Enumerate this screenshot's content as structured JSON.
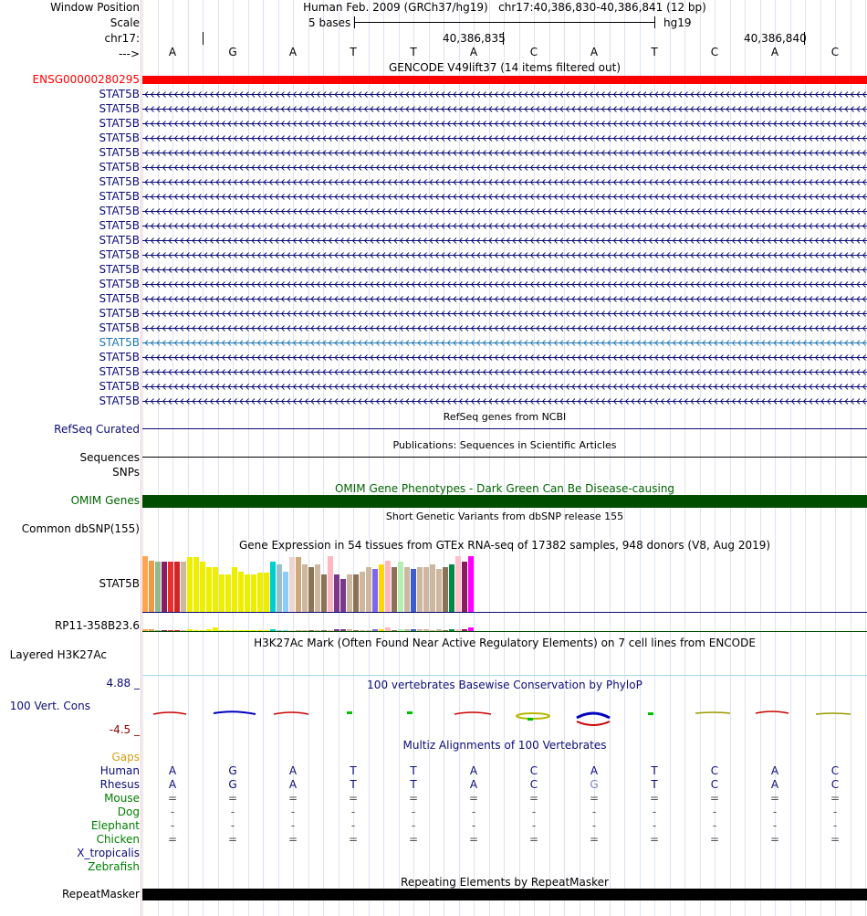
{
  "header": {
    "window_position_label": "Window Position",
    "scale_label": "Scale",
    "chrom_label": "chr17:",
    "arrow_label": "--->",
    "assembly": "Human Feb. 2009 (GRCh37/hg19)",
    "position": "chr17:40,386,830-40,386,841 (12 bp)",
    "scale_text": "5 bases",
    "db": "hg19",
    "coord1": "40,386,835",
    "coord2": "40,386,840"
  },
  "bases": [
    "A",
    "G",
    "A",
    "T",
    "T",
    "A",
    "C",
    "A",
    "T",
    "C",
    "A",
    "C"
  ],
  "gencode": {
    "title": "GENCODE V49lift37 (14 items filtered out)",
    "top_item": "ENSG00000280295",
    "top_color": "#ff0000",
    "items": [
      "STAT5B",
      "STAT5B",
      "STAT5B",
      "STAT5B",
      "STAT5B",
      "STAT5B",
      "STAT5B",
      "STAT5B",
      "STAT5B",
      "STAT5B",
      "STAT5B",
      "STAT5B",
      "STAT5B",
      "STAT5B",
      "STAT5B",
      "STAT5B",
      "STAT5B",
      "STAT5B",
      "STAT5B",
      "STAT5B",
      "STAT5B",
      "STAT5B"
    ],
    "item_color": "#0c0c78",
    "highlight_color": "#1f77b4",
    "highlight_index": 17
  },
  "refseq": {
    "title": "RefSeq genes from NCBI",
    "label": "RefSeq Curated"
  },
  "publications": {
    "title": "Publications: Sequences in Scientific Articles",
    "label": "Sequences"
  },
  "snps": {
    "label": "SNPs"
  },
  "omim": {
    "title": "OMIM Gene Phenotypes - Dark Green Can Be Disease-causing",
    "label": "OMIM Genes",
    "color": "#004d00"
  },
  "dbsnp": {
    "title": "Short Genetic Variants from dbSNP release 155",
    "label": "Common dbSNP(155)"
  },
  "gtex": {
    "title": "Gene Expression in 54 tissues from GTEx RNA-seq of 17382 samples, 948 donors (V8, Aug 2019)",
    "gene1": "STAT5B",
    "gene2": "RP11-358B23.6",
    "bars": [
      {
        "v": 0.95,
        "c": "#ffa54f"
      },
      {
        "v": 0.88,
        "c": "#ee9a49"
      },
      {
        "v": 0.86,
        "c": "#8fbc8f"
      },
      {
        "v": 0.86,
        "c": "#8b1c62"
      },
      {
        "v": 0.86,
        "c": "#ee2c2c"
      },
      {
        "v": 0.86,
        "c": "#cd2626"
      },
      {
        "v": 0.86,
        "c": "#cdb79e"
      },
      {
        "v": 0.93,
        "c": "#eeee00"
      },
      {
        "v": 0.93,
        "c": "#eeee00"
      },
      {
        "v": 0.86,
        "c": "#eeee00"
      },
      {
        "v": 0.77,
        "c": "#eeee00"
      },
      {
        "v": 0.77,
        "c": "#eeee00"
      },
      {
        "v": 0.64,
        "c": "#eeee00"
      },
      {
        "v": 0.64,
        "c": "#eeee00"
      },
      {
        "v": 0.77,
        "c": "#eeee00"
      },
      {
        "v": 0.69,
        "c": "#eeee00"
      },
      {
        "v": 0.64,
        "c": "#eeee00"
      },
      {
        "v": 0.64,
        "c": "#eeee00"
      },
      {
        "v": 0.67,
        "c": "#eeee00"
      },
      {
        "v": 0.67,
        "c": "#eeee00"
      },
      {
        "v": 0.86,
        "c": "#00cdcd"
      },
      {
        "v": 0.82,
        "c": "#9ac0cd"
      },
      {
        "v": 0.68,
        "c": "#87cefa"
      },
      {
        "v": 0.93,
        "c": "#eed5d2"
      },
      {
        "v": 0.93,
        "c": "#cdaa7d"
      },
      {
        "v": 0.82,
        "c": "#cdb79e"
      },
      {
        "v": 0.77,
        "c": "#8b7355"
      },
      {
        "v": 0.82,
        "c": "#cdb79e"
      },
      {
        "v": 0.64,
        "c": "#8b7355"
      },
      {
        "v": 0.95,
        "c": "#ffb6c1"
      },
      {
        "v": 0.64,
        "c": "#7a378b"
      },
      {
        "v": 0.56,
        "c": "#7a378b"
      },
      {
        "v": 0.64,
        "c": "#cdb79e"
      },
      {
        "v": 0.64,
        "c": "#8b7355"
      },
      {
        "v": 0.68,
        "c": "#cdb79e"
      },
      {
        "v": 0.77,
        "c": "#cdb79e"
      },
      {
        "v": 0.73,
        "c": "#7b68ee"
      },
      {
        "v": 0.82,
        "c": "#ffd700"
      },
      {
        "v": 0.88,
        "c": "#ffb6c1"
      },
      {
        "v": 0.77,
        "c": "#8b7355"
      },
      {
        "v": 0.86,
        "c": "#b4eeb4"
      },
      {
        "v": 0.77,
        "c": "#cdb79e"
      },
      {
        "v": 0.73,
        "c": "#3a5fcd"
      },
      {
        "v": 0.77,
        "c": "#cdb79e"
      },
      {
        "v": 0.77,
        "c": "#cdb79e"
      },
      {
        "v": 0.82,
        "c": "#cdb79e"
      },
      {
        "v": 0.73,
        "c": "#cdb79e"
      },
      {
        "v": 0.77,
        "c": "#8b7355"
      },
      {
        "v": 0.82,
        "c": "#008b45"
      },
      {
        "v": 0.95,
        "c": "#ffc0cb"
      },
      {
        "v": 0.86,
        "c": "#8b1c62"
      },
      {
        "v": 0.95,
        "c": "#ff00ff"
      }
    ]
  },
  "h3k27ac": {
    "title": "H3K27Ac Mark (Often Found Near Active Regulatory Elements) on 7 cell lines from ENCODE",
    "label": "Layered H3K27Ac"
  },
  "phylop": {
    "title": "100 vertebrates Basewise Conservation by PhyloP",
    "label": "100 Vert. Cons",
    "max": "4.88 _",
    "min": "-4.5 _"
  },
  "multiz": {
    "title": "Multiz Alignments of 100 Vertebrates",
    "gaps_label": "Gaps",
    "species": [
      {
        "name": "Human",
        "color": "#0c0c78",
        "row": [
          "A",
          "G",
          "A",
          "T",
          "T",
          "A",
          "C",
          "A",
          "T",
          "C",
          "A",
          "C"
        ]
      },
      {
        "name": "Rhesus",
        "color": "#0c0c78",
        "row": [
          "A",
          "G",
          "A",
          "T",
          "T",
          "A",
          "C",
          "G",
          "T",
          "C",
          "A",
          "C"
        ]
      },
      {
        "name": "Mouse",
        "color": "#008000",
        "row": [
          "=",
          "=",
          "=",
          "=",
          "=",
          "=",
          "=",
          "=",
          "=",
          "=",
          "=",
          "="
        ]
      },
      {
        "name": "Dog",
        "color": "#008000",
        "row": [
          "-",
          "-",
          "-",
          "-",
          "-",
          "-",
          "-",
          "-",
          "-",
          "-",
          "-",
          "-"
        ]
      },
      {
        "name": "Elephant",
        "color": "#008000",
        "row": [
          "-",
          "-",
          "-",
          "-",
          "-",
          "-",
          "-",
          "-",
          "-",
          "-",
          "-",
          "-"
        ]
      },
      {
        "name": "Chicken",
        "color": "#008000",
        "row": [
          "=",
          "=",
          "=",
          "=",
          "=",
          "=",
          "=",
          "=",
          "=",
          "=",
          "=",
          "="
        ]
      },
      {
        "name": "X_tropicalis",
        "color": "#0c0c78",
        "row": []
      },
      {
        "name": "Zebrafish",
        "color": "#008000",
        "row": []
      }
    ]
  },
  "repeatmasker": {
    "title": "Repeating Elements by RepeatMasker",
    "label": "RepeatMasker"
  }
}
